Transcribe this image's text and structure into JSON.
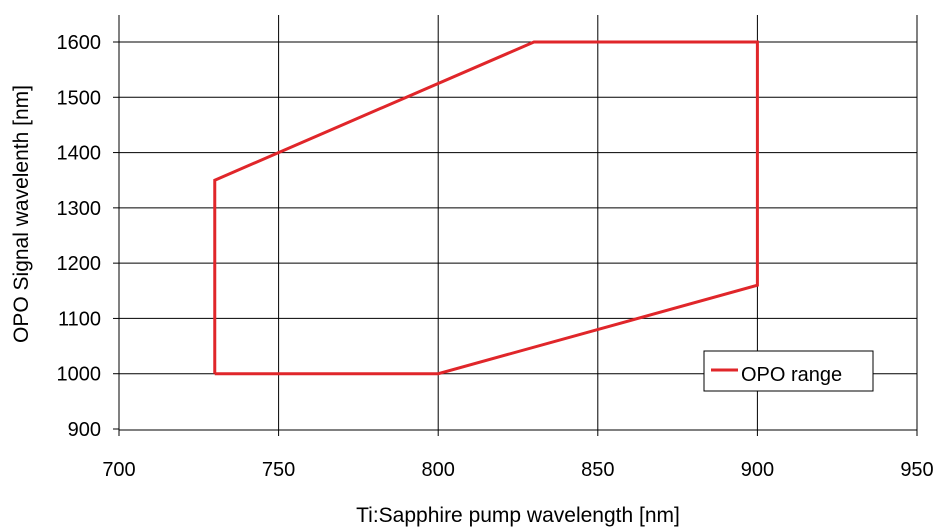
{
  "chart_data": {
    "type": "line",
    "title": "",
    "xlabel": "Ti:Sapphire pump wavelength [nm]",
    "ylabel": "OPO Signal wavelenth [nm]",
    "xlim": [
      700,
      950
    ],
    "ylim": [
      900,
      1600
    ],
    "xticks": [
      "700",
      "750",
      "800",
      "850",
      "900",
      "950"
    ],
    "yticks": [
      "900",
      "1000",
      "1100",
      "1200",
      "1300",
      "1400",
      "1500",
      "1600"
    ],
    "grid": true,
    "legend": "bottom-right",
    "series": [
      {
        "name": "OPO range",
        "color": "#e0262a",
        "points": [
          {
            "x": 730,
            "y": 1000
          },
          {
            "x": 730,
            "y": 1350
          },
          {
            "x": 830,
            "y": 1600
          },
          {
            "x": 900,
            "y": 1600
          },
          {
            "x": 900,
            "y": 1160
          },
          {
            "x": 800,
            "y": 1000
          },
          {
            "x": 730,
            "y": 1000
          }
        ]
      }
    ]
  }
}
